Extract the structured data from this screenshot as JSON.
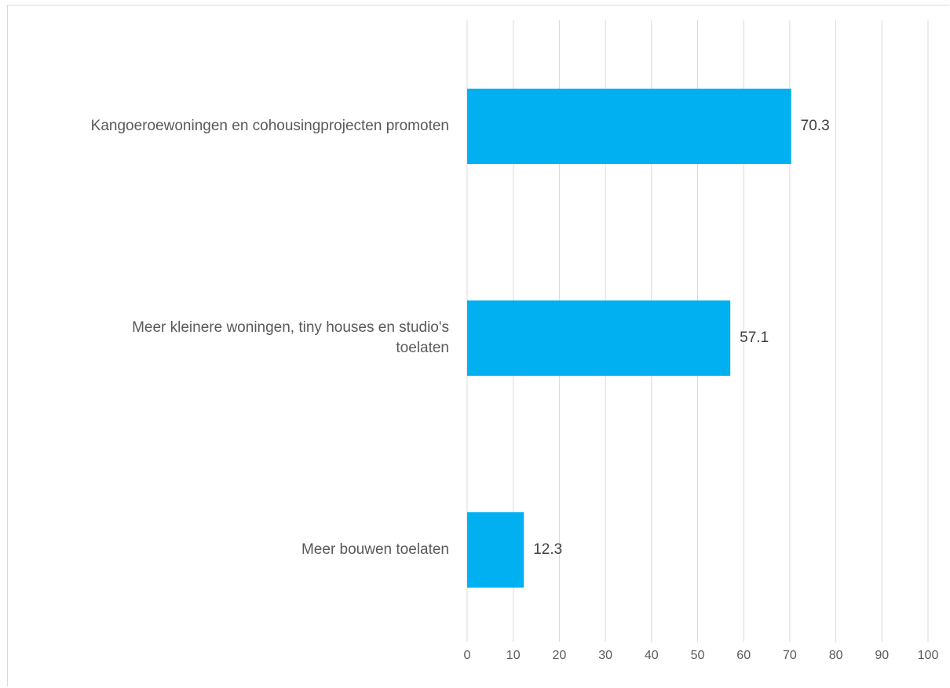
{
  "chart_data": {
    "type": "bar",
    "orientation": "horizontal",
    "categories": [
      [
        "Kangoeroewoningen en cohousingprojecten promoten"
      ],
      [
        "Meer kleinere woningen, tiny houses en studio's",
        "toelaten"
      ],
      [
        "Meer bouwen toelaten"
      ]
    ],
    "values": [
      70.3,
      57.1,
      12.3
    ],
    "data_labels": [
      "70.3",
      "57.1",
      "12.3"
    ],
    "x_ticks": [
      "0",
      "10",
      "20",
      "30",
      "40",
      "50",
      "60",
      "70",
      "80",
      "90",
      "100"
    ],
    "xlim": [
      0,
      100
    ],
    "grid": true,
    "bar_color": "#00B0F0",
    "title": "",
    "xlabel": "",
    "ylabel": ""
  }
}
